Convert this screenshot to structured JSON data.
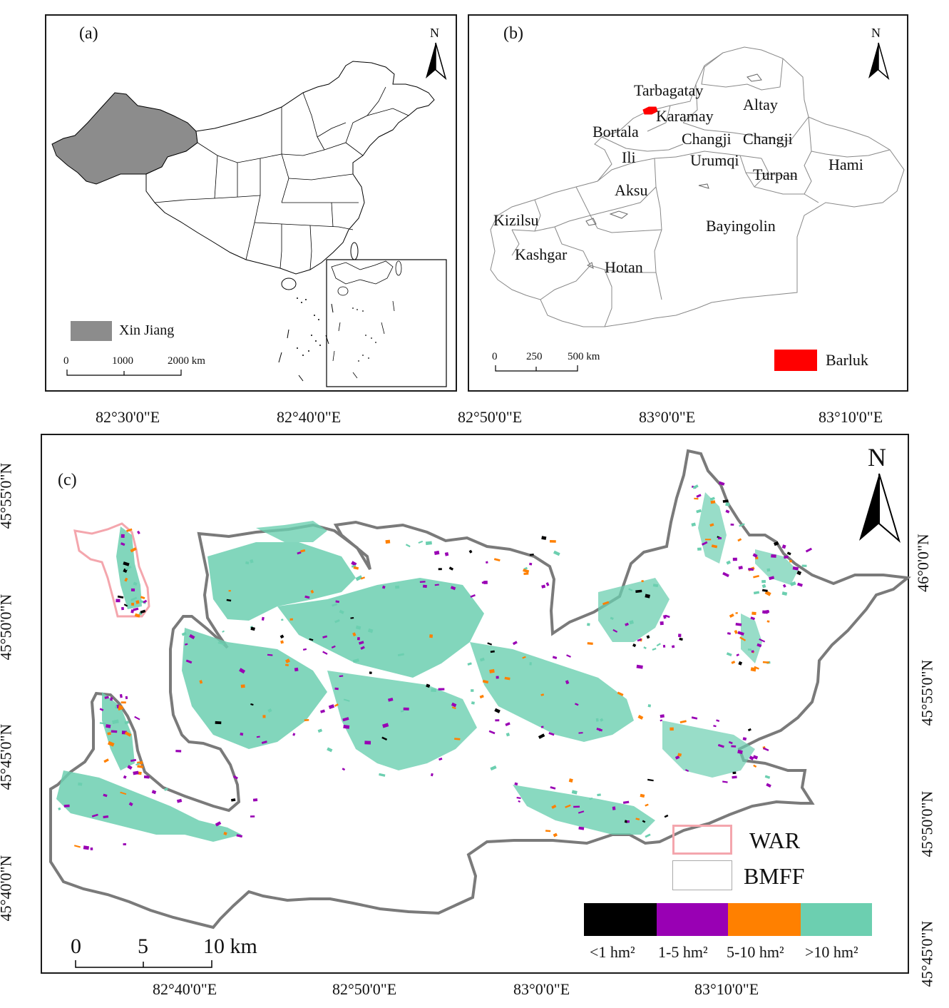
{
  "panels": {
    "a": {
      "label": "(a)",
      "north": "N",
      "legend_label": "Xin Jiang",
      "scale": {
        "labels": [
          "0",
          "1000",
          "2000 km"
        ]
      },
      "colors": {
        "xinjiang": "#8c8c8c"
      }
    },
    "b": {
      "label": "(b)",
      "north": "N",
      "regions": [
        "Tarbagatay",
        "Altay",
        "Karamay",
        "Bortala",
        "Changji",
        "Changji",
        "Ili",
        "Urumqi",
        "Turpan",
        "Hami",
        "Aksu",
        "Kizilsu",
        "Bayingolin",
        "Kashgar",
        "Hotan"
      ],
      "legend_label": "Barluk",
      "scale": {
        "labels": [
          "0",
          "250",
          "500 km"
        ]
      },
      "colors": {
        "barluk": "#ff0000"
      }
    },
    "c": {
      "label": "(c)",
      "north": "N",
      "top_ticks": [
        "82°30'0\"E",
        "82°40'0\"E",
        "82°50'0\"E",
        "83°0'0\"E",
        "83°10'0\"E"
      ],
      "bottom_ticks": [
        "82°40'0\"E",
        "82°50'0\"E",
        "83°0'0\"E",
        "83°10'0\"E"
      ],
      "left_ticks": [
        "45°55'0\"N",
        "45°50'0\"N",
        "45°45'0\"N",
        "45°40'0\"N"
      ],
      "right_ticks": [
        "46°0'0\"N",
        "45°55'0\"N",
        "45°50'0\"N",
        "45°45'0\"N"
      ],
      "scale": {
        "labels": [
          "0",
          "5",
          "10 km"
        ]
      },
      "boundary_legend": [
        {
          "label": "WAR",
          "color": "#f4a6ad"
        },
        {
          "label": "BMFF",
          "color": "#aaaaaa"
        }
      ],
      "area_legend": [
        {
          "label": "<1 hm²",
          "color": "#000000"
        },
        {
          "label": "1-5 hm²",
          "color": "#9900b4"
        },
        {
          "label": "5-10 hm²",
          "color": "#ff8000"
        },
        {
          "label": ">10 hm²",
          "color": "#6ccfb0"
        }
      ]
    }
  }
}
